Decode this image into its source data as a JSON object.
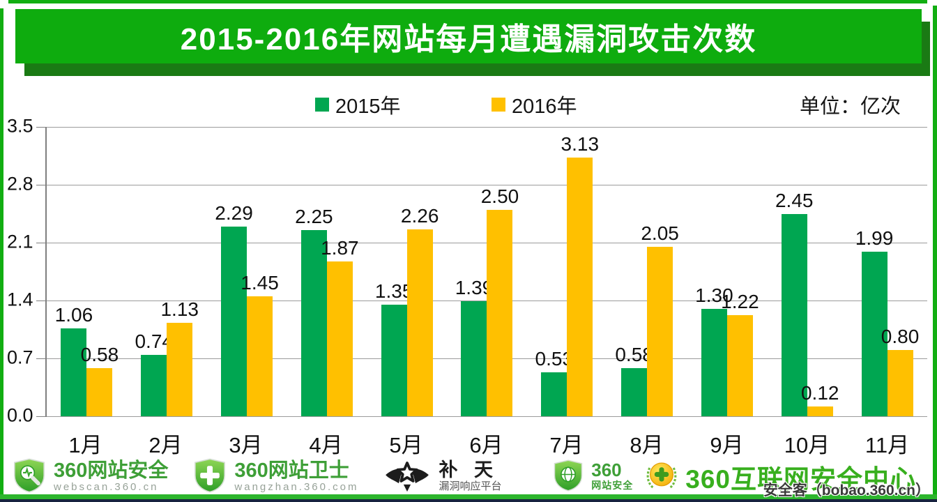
{
  "title": "2015-2016年网站每月遭遇漏洞攻击次数",
  "legend": {
    "unit": "单位：亿次"
  },
  "chart_data": {
    "type": "bar",
    "title": "2015-2016年网站每月遭遇漏洞攻击次数",
    "unit_label": "单位：亿次",
    "categories": [
      "1月",
      "2月",
      "3月",
      "4月",
      "5月",
      "6月",
      "7月",
      "8月",
      "9月",
      "10月",
      "11月"
    ],
    "series": [
      {
        "name": "2015年",
        "color": "#00A651",
        "values": [
          1.06,
          0.74,
          2.29,
          2.25,
          1.35,
          1.39,
          0.53,
          0.58,
          1.3,
          2.45,
          1.99
        ]
      },
      {
        "name": "2016年",
        "color": "#FFC000",
        "values": [
          0.58,
          1.13,
          1.45,
          1.87,
          2.26,
          2.5,
          3.13,
          2.05,
          1.22,
          0.12,
          0.8
        ]
      }
    ],
    "ylim": [
      0,
      3.5
    ],
    "yticks": [
      "0.0",
      "0.7",
      "1.4",
      "2.1",
      "2.8",
      "3.5"
    ],
    "grid": true,
    "legend_position": "top"
  },
  "footer": {
    "logos": [
      {
        "name": "360网站安全",
        "sub": "webscan.360.cn"
      },
      {
        "name": "360网站卫士",
        "sub": "wangzhan.360.com"
      },
      {
        "name": "补 天",
        "sub": "漏洞响应平台"
      },
      {
        "name": "360",
        "sub": "网站安全"
      },
      {
        "name": "360互联网安全中心",
        "sub": ""
      }
    ],
    "watermark": "安全客（bobao.360.cn）"
  },
  "colors": {
    "banner_green": "#0EAC0E",
    "banner_shadow": "#1A7A14",
    "bar_green": "#00A651",
    "bar_yellow": "#FFC000",
    "footer_brand_green": "#3E9F37"
  }
}
